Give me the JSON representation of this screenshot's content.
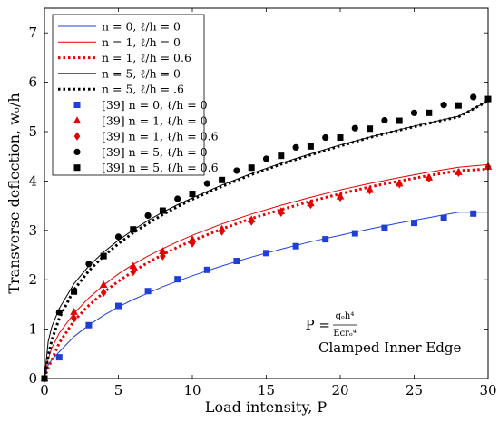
{
  "chart_data": {
    "type": "line",
    "xlabel": "Load intensity, P",
    "ylabel": "Transverse deflection, wₒ/h",
    "xlim": [
      0,
      30
    ],
    "ylim": [
      0,
      7.5
    ],
    "xticks": [
      0,
      5,
      10,
      15,
      20,
      25,
      30
    ],
    "yticks": [
      0,
      1,
      2,
      3,
      4,
      5,
      6,
      7
    ],
    "legend_position": "top-left",
    "annotations": {
      "formula_lhs": "P =",
      "formula_num": "qₒh⁴",
      "formula_den": "Eᴄrₒ⁴",
      "label": "Clamped Inner Edge"
    },
    "series": [
      {
        "name": "n = 0, ℓ/h = 0",
        "kind": "line",
        "style": "solid",
        "color": "#1f3fd6",
        "x": [
          0,
          0.25,
          0.5,
          1,
          2,
          3,
          4,
          5,
          6,
          7,
          8,
          9,
          10,
          12,
          14,
          16,
          18,
          20,
          22,
          24,
          26,
          28,
          30
        ],
        "y": [
          0,
          0.27,
          0.38,
          0.54,
          0.85,
          1.08,
          1.28,
          1.45,
          1.6,
          1.73,
          1.86,
          1.97,
          2.08,
          2.28,
          2.46,
          2.62,
          2.77,
          2.9,
          3.03,
          3.15,
          3.26,
          3.37,
          3.37
        ]
      },
      {
        "name": "n = 1, ℓ/h = 0",
        "kind": "line",
        "style": "solid",
        "color": "#e60000",
        "x": [
          0,
          0.25,
          0.5,
          1,
          2,
          3,
          4,
          5,
          6,
          7,
          8,
          9,
          10,
          12,
          14,
          16,
          18,
          20,
          22,
          24,
          26,
          28,
          30
        ],
        "y": [
          0,
          0.4,
          0.62,
          0.92,
          1.32,
          1.63,
          1.89,
          2.12,
          2.31,
          2.48,
          2.63,
          2.77,
          2.9,
          3.13,
          3.33,
          3.51,
          3.67,
          3.82,
          3.95,
          4.07,
          4.18,
          4.28,
          4.33
        ]
      },
      {
        "name": "n = 1, ℓ/h = 0.6",
        "kind": "line",
        "style": "dotted",
        "color": "#e60000",
        "x": [
          0,
          0.25,
          0.5,
          1,
          2,
          3,
          4,
          5,
          6,
          7,
          8,
          9,
          10,
          12,
          14,
          16,
          18,
          20,
          22,
          24,
          26,
          28,
          30
        ],
        "y": [
          0,
          0.22,
          0.38,
          0.72,
          1.17,
          1.48,
          1.74,
          1.97,
          2.17,
          2.35,
          2.51,
          2.66,
          2.79,
          3.03,
          3.24,
          3.42,
          3.59,
          3.74,
          3.88,
          4.0,
          4.11,
          4.21,
          4.24
        ]
      },
      {
        "name": "n = 5, ℓ/h = 0",
        "kind": "line",
        "style": "solid",
        "color": "#000000",
        "x": [
          0,
          0.25,
          0.5,
          1,
          2,
          3,
          4,
          5,
          6,
          7,
          8,
          9,
          10,
          12,
          14,
          16,
          18,
          20,
          22,
          24,
          26,
          28,
          30
        ],
        "y": [
          0,
          0.75,
          1.05,
          1.42,
          1.92,
          2.28,
          2.56,
          2.8,
          3.01,
          3.2,
          3.37,
          3.52,
          3.66,
          3.92,
          4.15,
          4.36,
          4.55,
          4.73,
          4.89,
          5.04,
          5.18,
          5.31,
          5.62
        ]
      },
      {
        "name": "n = 5, ℓ/h = .6",
        "kind": "line",
        "style": "dotted",
        "color": "#000000",
        "x": [
          0,
          0.25,
          0.5,
          1,
          2,
          3,
          4,
          5,
          6,
          7,
          8,
          9,
          10,
          12,
          14,
          16,
          18,
          20,
          22,
          24,
          26,
          28,
          30
        ],
        "y": [
          0,
          0.45,
          0.78,
          1.22,
          1.8,
          2.18,
          2.48,
          2.73,
          2.95,
          3.14,
          3.32,
          3.48,
          3.63,
          3.89,
          4.13,
          4.34,
          4.53,
          4.71,
          4.88,
          5.03,
          5.17,
          5.3,
          5.62
        ]
      },
      {
        "name": "[39] n = 0, ℓ/h = 0",
        "kind": "marker",
        "marker": "square",
        "color": "#1f3fd6",
        "x": [
          0,
          1,
          3,
          5,
          7,
          9,
          11,
          13,
          15,
          17,
          19,
          21,
          23,
          25,
          27,
          29
        ],
        "y": [
          0,
          0.43,
          1.08,
          1.47,
          1.77,
          2.01,
          2.2,
          2.38,
          2.54,
          2.68,
          2.82,
          2.94,
          3.05,
          3.15,
          3.25,
          3.34
        ]
      },
      {
        "name": "[39] n = 1, ℓ/h = 0",
        "kind": "marker",
        "marker": "triangle",
        "color": "#e60000",
        "x": [
          0,
          2,
          4,
          6,
          8,
          10,
          12,
          14,
          16,
          18,
          20,
          22,
          24,
          26,
          28,
          30
        ],
        "y": [
          0,
          1.35,
          1.9,
          2.28,
          2.58,
          2.82,
          3.03,
          3.22,
          3.39,
          3.55,
          3.69,
          3.82,
          3.95,
          4.07,
          4.18,
          4.29
        ]
      },
      {
        "name": "[39] n = 1, ℓ/h = 0.6",
        "kind": "marker",
        "marker": "diamond",
        "color": "#e60000",
        "x": [
          0,
          2,
          4,
          6,
          8,
          10,
          12,
          14,
          16,
          18,
          20,
          22,
          24,
          26,
          28,
          30
        ],
        "y": [
          0,
          1.22,
          1.74,
          2.16,
          2.48,
          2.74,
          2.98,
          3.18,
          3.36,
          3.52,
          3.67,
          3.81,
          3.94,
          4.06,
          4.17,
          4.29
        ]
      },
      {
        "name": "[39] n = 5, ℓ/h = 0",
        "kind": "marker",
        "marker": "circle",
        "color": "#000000",
        "x": [
          0,
          1,
          3,
          5,
          7,
          9,
          11,
          13,
          15,
          17,
          19,
          21,
          23,
          25,
          27,
          29
        ],
        "y": [
          0,
          1.34,
          2.32,
          2.87,
          3.3,
          3.64,
          3.95,
          4.21,
          4.45,
          4.68,
          4.88,
          5.07,
          5.23,
          5.38,
          5.54,
          5.7
        ]
      },
      {
        "name": "[39] n = 5, ℓ/h = 0.6",
        "kind": "marker",
        "marker": "square",
        "color": "#000000",
        "x": [
          0,
          2,
          4,
          6,
          8,
          10,
          12,
          14,
          16,
          18,
          20,
          22,
          24,
          26,
          28,
          30
        ],
        "y": [
          0,
          1.76,
          2.48,
          3.02,
          3.4,
          3.74,
          4.02,
          4.27,
          4.51,
          4.7,
          4.88,
          5.06,
          5.22,
          5.38,
          5.53,
          5.66
        ]
      }
    ]
  }
}
